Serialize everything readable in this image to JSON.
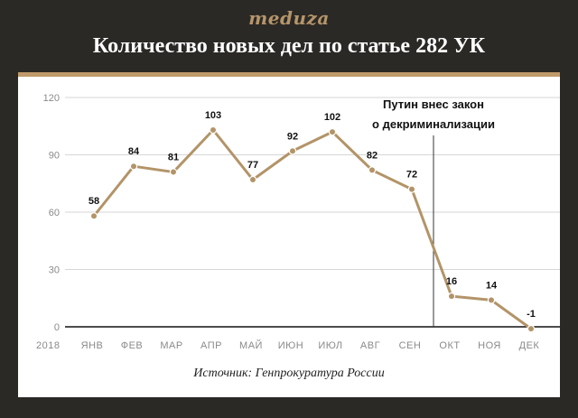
{
  "header": {
    "logo": "meduza",
    "title": "Количество новых дел по статье 282 УК"
  },
  "source": "Источник: Генпрокуратура России",
  "colors": {
    "background": "#2b2926",
    "accent": "#c09a6b",
    "line": "#b39468",
    "panel": "#ffffff"
  },
  "chart_data": {
    "type": "line",
    "title": "Количество новых дел по статье 282 УК",
    "year_label": "2018",
    "categories": [
      "ЯНВ",
      "ФЕВ",
      "МАР",
      "АПР",
      "МАЙ",
      "ИЮН",
      "ИЮЛ",
      "АВГ",
      "СЕН",
      "ОКТ",
      "НОЯ",
      "ДЕК"
    ],
    "values": [
      58,
      84,
      81,
      103,
      77,
      92,
      102,
      82,
      72,
      16,
      14,
      -1
    ],
    "ylim": [
      0,
      120
    ],
    "yticks": [
      0,
      30,
      60,
      90,
      120
    ],
    "grid": true,
    "annotation": {
      "line1": "Путин внес закон",
      "line2": "о декриминализации",
      "position": "между СЕН и ОКТ"
    }
  }
}
